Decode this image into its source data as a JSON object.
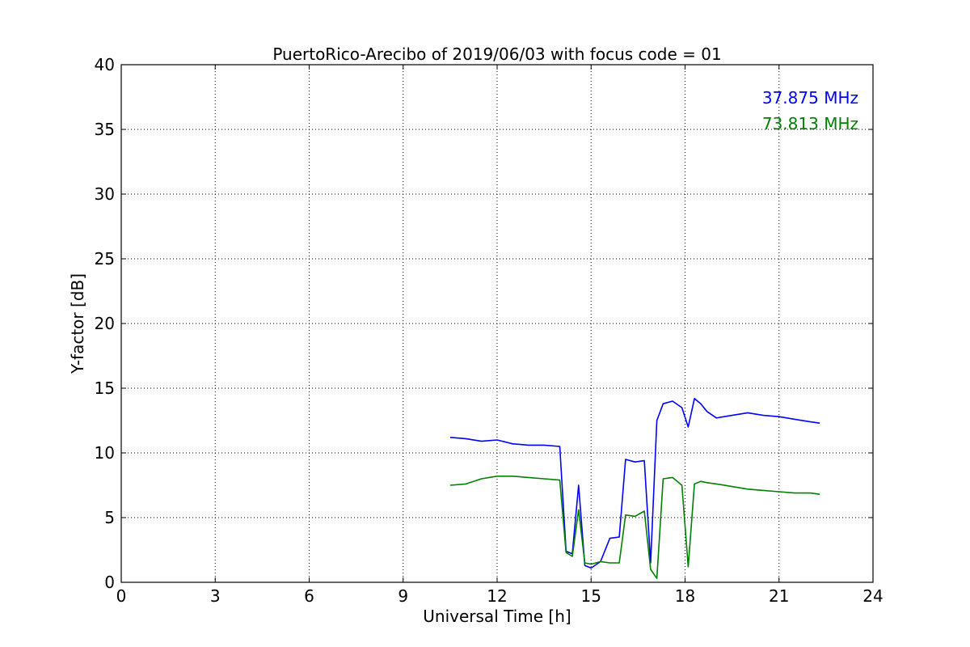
{
  "chart_data": {
    "type": "line",
    "title": "PuertoRico-Arecibo of 2019/06/03 with focus code = 01",
    "xlabel": "Universal Time [h]",
    "ylabel": "Y-factor [dB]",
    "xlim": [
      0,
      24
    ],
    "ylim": [
      0,
      40
    ],
    "xticks": [
      0,
      3,
      6,
      9,
      12,
      15,
      18,
      21,
      24
    ],
    "yticks": [
      0,
      5,
      10,
      15,
      20,
      25,
      30,
      35,
      40
    ],
    "grid": true,
    "legend_position": "top-right",
    "series": [
      {
        "name": "37.875 MHz",
        "color": "#0000ff",
        "x": [
          10.5,
          11.0,
          11.5,
          12.0,
          12.5,
          13.0,
          13.5,
          14.0,
          14.2,
          14.4,
          14.6,
          14.8,
          15.0,
          15.3,
          15.6,
          15.9,
          16.1,
          16.4,
          16.7,
          16.9,
          17.1,
          17.3,
          17.6,
          17.9,
          18.1,
          18.3,
          18.5,
          18.7,
          19.0,
          19.5,
          20.0,
          20.5,
          21.0,
          21.5,
          22.0,
          22.3
        ],
        "y": [
          11.2,
          11.1,
          10.9,
          11.0,
          10.7,
          10.6,
          10.6,
          10.5,
          2.4,
          2.2,
          7.5,
          1.3,
          1.1,
          1.6,
          3.4,
          3.5,
          9.5,
          9.3,
          9.4,
          1.5,
          12.5,
          13.8,
          14.0,
          13.5,
          12.0,
          14.2,
          13.8,
          13.2,
          12.7,
          12.9,
          13.1,
          12.9,
          12.8,
          12.6,
          12.4,
          12.3
        ]
      },
      {
        "name": "73.813 MHz",
        "color": "#008000",
        "x": [
          10.5,
          11.0,
          11.5,
          12.0,
          12.5,
          13.0,
          13.5,
          14.0,
          14.2,
          14.4,
          14.6,
          14.8,
          15.0,
          15.3,
          15.6,
          15.9,
          16.1,
          16.4,
          16.7,
          16.9,
          17.1,
          17.3,
          17.6,
          17.9,
          18.1,
          18.3,
          18.5,
          18.7,
          19.0,
          19.5,
          20.0,
          20.5,
          21.0,
          21.5,
          22.0,
          22.3
        ],
        "y": [
          7.5,
          7.6,
          8.0,
          8.2,
          8.2,
          8.1,
          8.0,
          7.9,
          2.3,
          2.0,
          5.6,
          1.5,
          1.4,
          1.6,
          1.5,
          1.5,
          5.2,
          5.1,
          5.5,
          1.0,
          0.3,
          8.0,
          8.1,
          7.5,
          1.2,
          7.6,
          7.8,
          7.7,
          7.6,
          7.4,
          7.2,
          7.1,
          7.0,
          6.9,
          6.9,
          6.8
        ]
      }
    ]
  }
}
